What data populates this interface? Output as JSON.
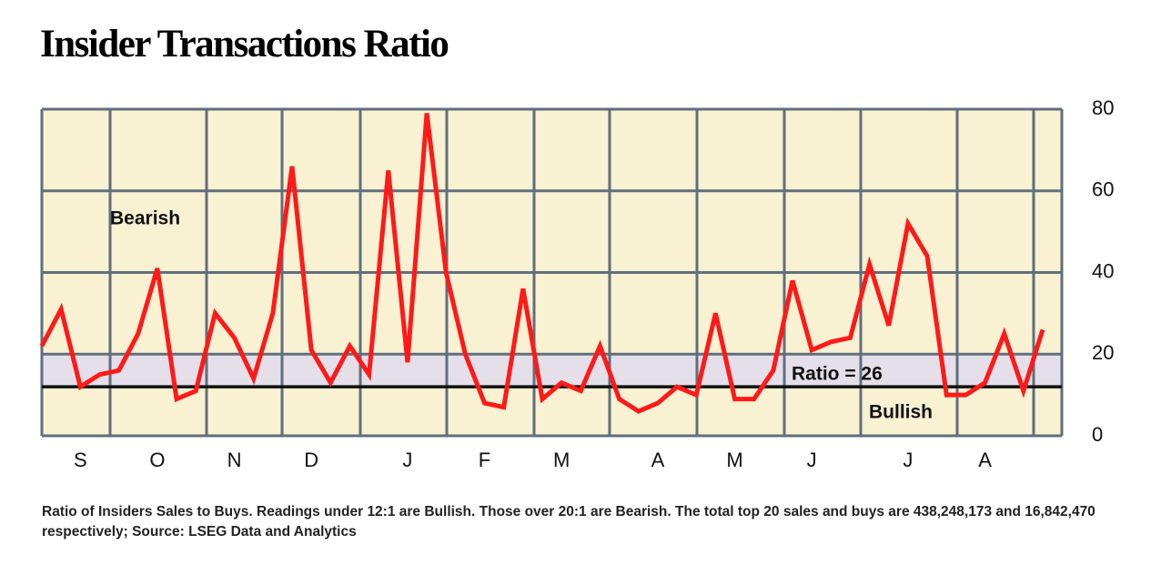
{
  "chart_data": {
    "type": "line",
    "title": "Insider Transactions Ratio",
    "categories": [
      null,
      null,
      "S",
      null,
      null,
      null,
      "O",
      null,
      null,
      null,
      "N",
      null,
      null,
      null,
      "D",
      null,
      null,
      null,
      null,
      "J",
      null,
      null,
      null,
      "F",
      null,
      null,
      null,
      "M",
      null,
      null,
      null,
      null,
      "A",
      null,
      null,
      null,
      "M",
      null,
      null,
      null,
      "J",
      null,
      null,
      null,
      null,
      "J",
      null,
      null,
      null,
      "A",
      null,
      null,
      null
    ],
    "series": [
      {
        "name": "Ratio",
        "color": "#ff1a1a",
        "values": [
          22,
          31,
          12,
          15,
          16,
          25,
          41,
          9,
          11,
          30,
          24,
          14,
          30,
          66,
          21,
          13,
          22,
          15,
          65,
          18,
          79,
          40,
          20,
          8,
          7,
          36,
          9,
          13,
          11,
          22,
          9,
          6,
          8,
          12,
          10,
          30,
          9,
          9,
          16,
          38,
          21,
          23,
          24,
          42,
          27,
          52,
          44,
          10,
          10,
          13,
          25,
          11,
          26
        ]
      }
    ],
    "ylim": [
      0,
      80
    ],
    "yticks": [
      0,
      20,
      40,
      60,
      80
    ],
    "grid": true,
    "band": [
      12,
      20
    ],
    "annotations": [
      "Bearish",
      "Ratio = 26",
      "Bullish"
    ],
    "note": "Ratio of Insiders Sales to Buys. Readings under 12:1 are Bullish. Those over 20:1 are Bearish. The total top 20 sales and buys are 438,248,173 and 16,842,470 respectively; Source: LSEG Data and Analytics"
  }
}
